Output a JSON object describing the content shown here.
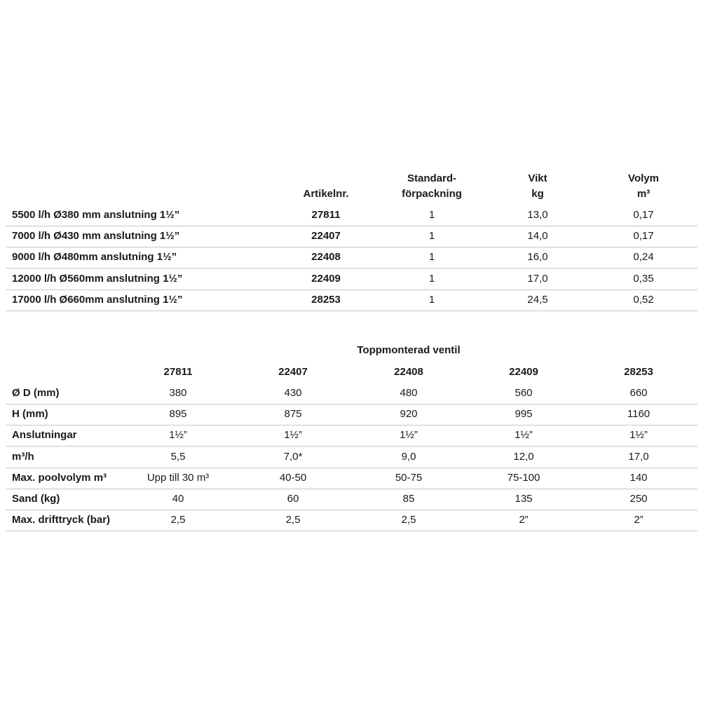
{
  "table1": {
    "header": [
      [
        "Artikelnr."
      ],
      [
        "Standard-",
        "förpackning"
      ],
      [
        "Vikt",
        "kg"
      ],
      [
        "Volym",
        "m³"
      ]
    ],
    "rows": [
      [
        "5500 l/h  Ø380 mm anslutning 1½”",
        "27811",
        "1",
        "13,0",
        "0,17"
      ],
      [
        "7000 l/h  Ø430 mm anslutning 1½”",
        "22407",
        "1",
        "14,0",
        "0,17"
      ],
      [
        "9000 l/h  Ø480mm anslutning 1½”",
        "22408",
        "1",
        "16,0",
        "0,24"
      ],
      [
        "12000 l/h  Ø560mm anslutning 1½”",
        "22409",
        "1",
        "17,0",
        "0,35"
      ],
      [
        "17000 l/h  Ø660mm anslutning 1½”",
        "28253",
        "1",
        "24,5",
        "0,52"
      ]
    ]
  },
  "table2": {
    "caption": "Toppmonterad ventil",
    "header": [
      "27811",
      "22407",
      "22408",
      "22409",
      "28253"
    ],
    "rows": [
      [
        "Ø D (mm)",
        "380",
        "430",
        "480",
        "560",
        "660"
      ],
      [
        "H (mm)",
        "895",
        "875",
        "920",
        "995",
        "1160"
      ],
      [
        "Anslutningar",
        "1½”",
        "1½”",
        "1½”",
        "1½”",
        "1½”"
      ],
      [
        "m³/h",
        "5,5",
        "7,0*",
        "9,0",
        "12,0",
        "17,0"
      ],
      [
        "Max. poolvolym m³",
        "Upp till 30 m³",
        "40-50",
        "50-75",
        "75-100",
        "140"
      ],
      [
        "Sand (kg)",
        "40",
        "60",
        "85",
        "135",
        "250"
      ],
      [
        "Max. drifttryck (bar)",
        "2,5",
        "2,5",
        "2,5",
        "2”",
        "2”"
      ]
    ]
  }
}
